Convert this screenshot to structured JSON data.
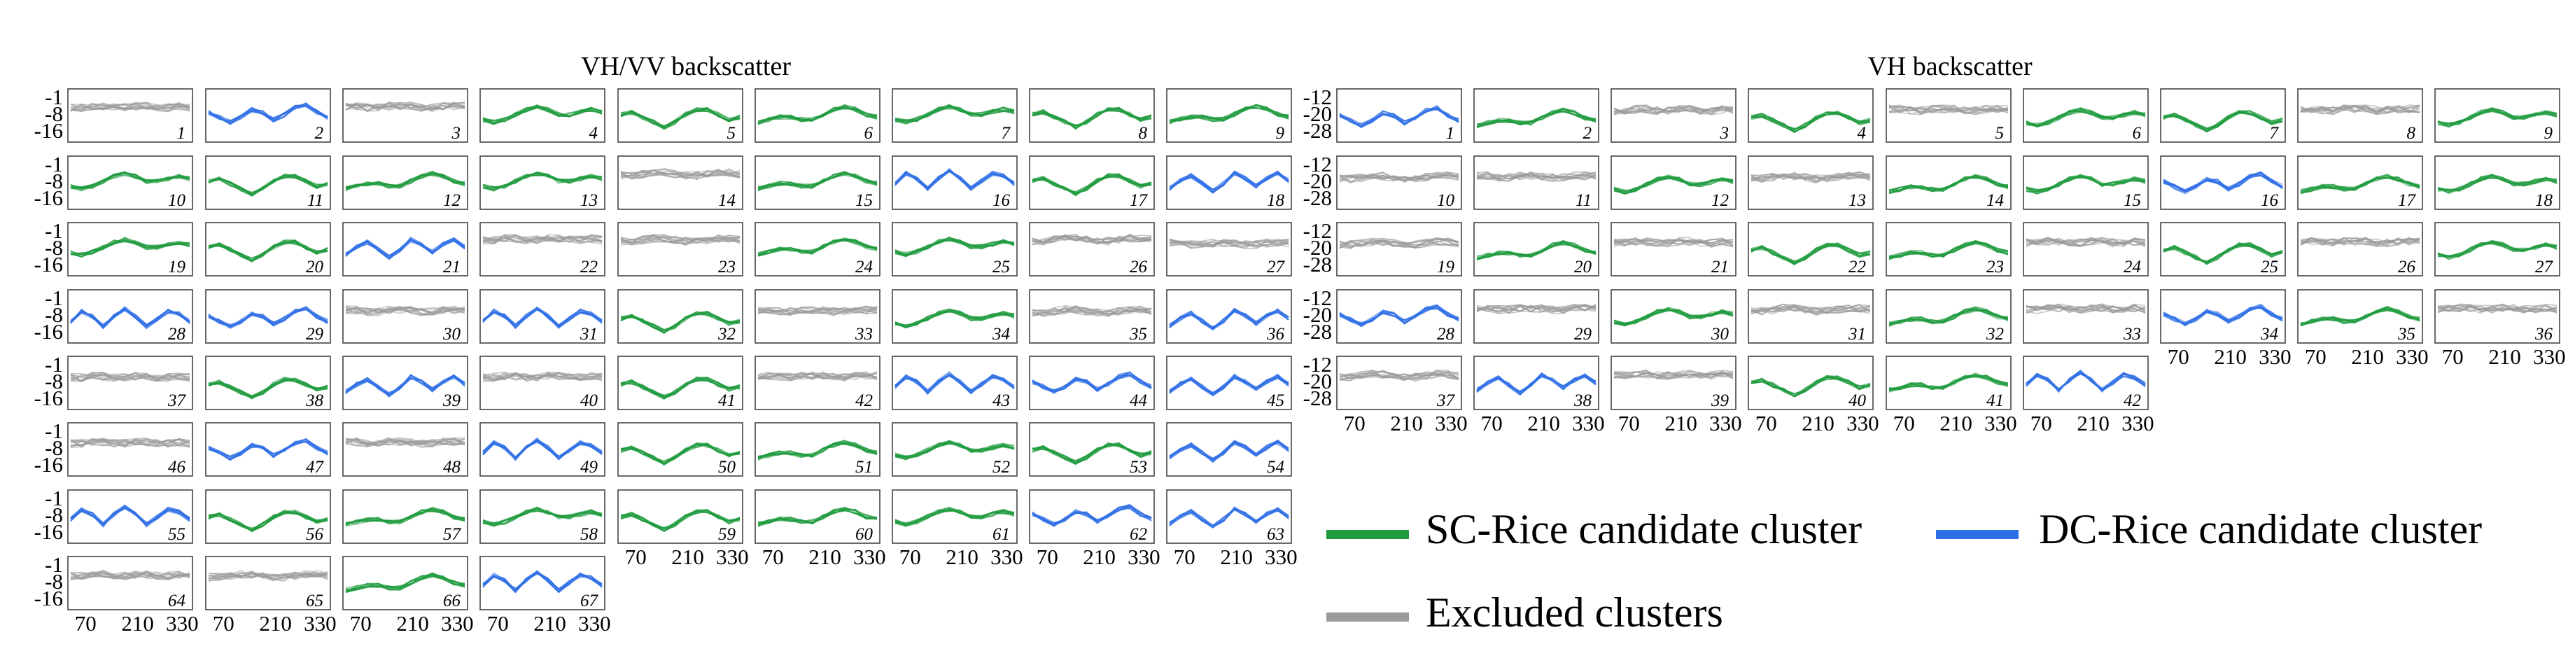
{
  "chart_data": {
    "type": "line",
    "title": "",
    "legend": {
      "placement": "bottom-right",
      "entries": [
        {
          "label": "SC-Rice candidate cluster",
          "color": "#1f9a3e"
        },
        {
          "label": "DC-Rice candidate cluster",
          "color": "#2f6fe6"
        },
        {
          "label": "Excluded clusters",
          "color": "#9a9a9a"
        }
      ]
    },
    "categories": {
      "SC": {
        "color": "#1f9a3e"
      },
      "DC": {
        "color": "#2f6fe6"
      },
      "EX": {
        "color": "#999999"
      }
    },
    "panels": [
      {
        "title": "VH/VV backscatter",
        "x_ticks": [
          70,
          210,
          330
        ],
        "xlim": [
          30,
          350
        ],
        "y_ticks": [
          -1,
          -8,
          -16
        ],
        "ylim": [
          -19,
          2
        ],
        "cluster_categories": [
          "EX",
          "DC",
          "EX",
          "SC",
          "SC",
          "SC",
          "SC",
          "SC",
          "SC",
          "SC",
          "SC",
          "SC",
          "SC",
          "EX",
          "SC",
          "DC",
          "SC",
          "DC",
          "SC",
          "SC",
          "DC",
          "EX",
          "EX",
          "SC",
          "SC",
          "EX",
          "EX",
          "DC",
          "DC",
          "EX",
          "DC",
          "SC",
          "EX",
          "SC",
          "EX",
          "DC",
          "EX",
          "SC",
          "DC",
          "EX",
          "SC",
          "EX",
          "DC",
          "DC",
          "DC",
          "EX",
          "DC",
          "EX",
          "DC",
          "SC",
          "SC",
          "SC",
          "SC",
          "DC",
          "DC",
          "SC",
          "SC",
          "SC",
          "SC",
          "SC",
          "SC",
          "DC",
          "DC",
          "EX",
          "EX",
          "SC",
          "DC"
        ]
      },
      {
        "title": "VH backscatter",
        "x_ticks": [
          70,
          210,
          330
        ],
        "xlim": [
          30,
          350
        ],
        "y_ticks": [
          -12,
          -20,
          -28
        ],
        "ylim": [
          -30,
          -8
        ],
        "cluster_categories": [
          "DC",
          "SC",
          "EX",
          "SC",
          "EX",
          "SC",
          "SC",
          "EX",
          "SC",
          "EX",
          "EX",
          "SC",
          "EX",
          "SC",
          "SC",
          "DC",
          "SC",
          "SC",
          "EX",
          "SC",
          "EX",
          "SC",
          "SC",
          "EX",
          "SC",
          "EX",
          "SC",
          "DC",
          "EX",
          "SC",
          "EX",
          "SC",
          "EX",
          "DC",
          "SC",
          "EX",
          "EX",
          "DC",
          "EX",
          "SC",
          "SC",
          "DC"
        ]
      }
    ]
  }
}
